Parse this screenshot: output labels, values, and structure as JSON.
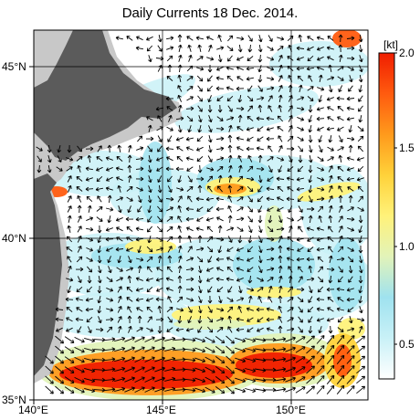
{
  "title": "Daily Currents 18 Dec. 2014.",
  "lat_labels": [
    "45°N",
    "40°N",
    "35°N"
  ],
  "lon_labels": [
    "140°E",
    "145°E",
    "150°E"
  ],
  "colorbar": {
    "unit": "[kt]",
    "ticks": [
      "2.0",
      "1.5",
      "1.0",
      "0.5"
    ],
    "colors": [
      "#ffffff",
      "#c9f1f7",
      "#9fe2ef",
      "#e2f3b9",
      "#fff27a",
      "#ffd23a",
      "#ff9a1c",
      "#ff5b0f",
      "#f01d00"
    ]
  },
  "colors": {
    "land": "#5b5b5b",
    "shelf": "#c8c8c8",
    "arrow": "#000000",
    "grid": "#000000"
  },
  "chart_data": {
    "type": "heatmap",
    "title": "Daily Currents 18 Dec. 2014.",
    "xlabel": "",
    "ylabel": "",
    "xlim": [
      140,
      153
    ],
    "ylim": [
      35,
      46.3
    ],
    "x_ticks": [
      "140°E",
      "145°E",
      "150°E"
    ],
    "y_ticks": [
      "45°N",
      "40°N",
      "35°N"
    ],
    "colorscale_label": "[kt]",
    "colorscale_range": [
      0,
      2.0
    ],
    "colorscale_ticks": [
      0.5,
      1.0,
      1.5,
      2.0
    ],
    "grid": true
  }
}
